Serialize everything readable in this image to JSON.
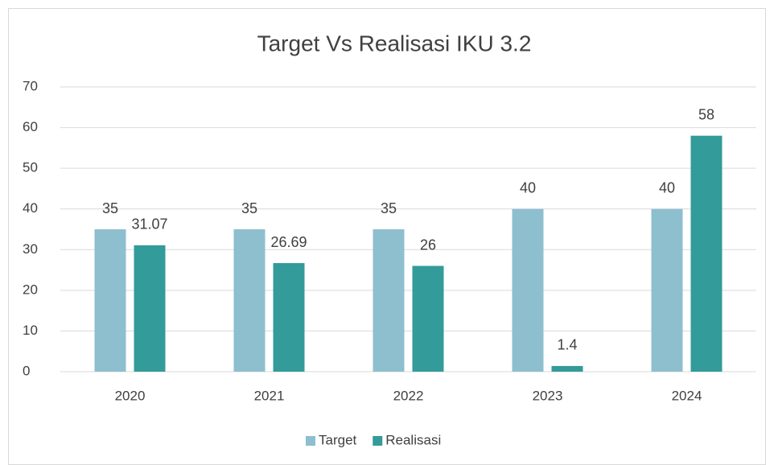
{
  "chart_data": {
    "type": "bar",
    "title": "Target Vs Realisasi IKU 3.2",
    "categories": [
      "2020",
      "2021",
      "2022",
      "2023",
      "2024"
    ],
    "series": [
      {
        "name": "Target",
        "color": "#8dbfcf",
        "values": [
          35,
          35,
          35,
          40,
          40
        ]
      },
      {
        "name": "Realisasi",
        "color": "#339b9a",
        "values": [
          31.07,
          26.69,
          26,
          1.4,
          58
        ]
      }
    ],
    "ylim": [
      0,
      70
    ],
    "yticks": [
      0,
      10,
      20,
      30,
      40,
      50,
      60,
      70
    ],
    "grid": true,
    "legend": "bottom"
  }
}
